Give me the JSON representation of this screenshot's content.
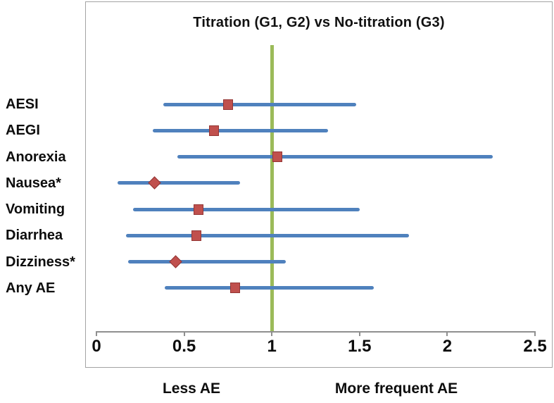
{
  "chart_data": {
    "type": "scatter",
    "variant": "forest-plot",
    "title": "Titration (G1, G2) vs No-titration (G3)",
    "xlabel_left": "Less AE",
    "xlabel_right": "More frequent AE",
    "xlim": [
      0,
      2.5
    ],
    "x_ticks": [
      0,
      0.5,
      1,
      1.5,
      2,
      2.5
    ],
    "x_tick_labels": [
      "0",
      "0.5",
      "1",
      "1.5",
      "2",
      "2.5"
    ],
    "reference_line_x": 1,
    "grid": false,
    "legend": false,
    "rows": [
      {
        "label": "AESI",
        "value": 0.75,
        "ci_low": 0.38,
        "ci_high": 1.48,
        "marker": "square"
      },
      {
        "label": "AEGI",
        "value": 0.67,
        "ci_low": 0.32,
        "ci_high": 1.32,
        "marker": "square"
      },
      {
        "label": "Anorexia",
        "value": 1.03,
        "ci_low": 0.46,
        "ci_high": 2.26,
        "marker": "square"
      },
      {
        "label": "Nausea*",
        "value": 0.33,
        "ci_low": 0.12,
        "ci_high": 0.82,
        "marker": "diamond"
      },
      {
        "label": "Vomiting",
        "value": 0.58,
        "ci_low": 0.21,
        "ci_high": 1.5,
        "marker": "square"
      },
      {
        "label": "Diarrhea",
        "value": 0.57,
        "ci_low": 0.17,
        "ci_high": 1.78,
        "marker": "square"
      },
      {
        "label": "Dizziness*",
        "value": 0.45,
        "ci_low": 0.18,
        "ci_high": 1.08,
        "marker": "diamond"
      },
      {
        "label": "Any AE",
        "value": 0.79,
        "ci_low": 0.39,
        "ci_high": 1.58,
        "marker": "square"
      }
    ],
    "colors": {
      "ci_line": "#4f81bd",
      "marker_fill": "#c0504d",
      "marker_border": "#943634",
      "reference_line": "#9bbb59",
      "axis": "#8f8f8f",
      "frame": "#a3a3a3",
      "text": "#0d0d0d"
    }
  }
}
